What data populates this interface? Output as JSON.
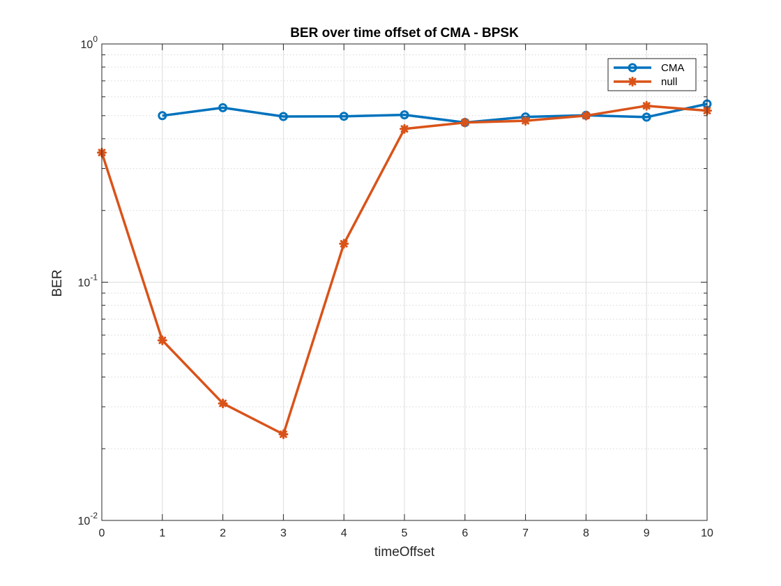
{
  "chart_data": {
    "type": "line",
    "title": "BER over time offset of CMA - BPSK",
    "xlabel": "timeOffset",
    "ylabel": "BER",
    "xlim": [
      0,
      10
    ],
    "ylim": [
      0.01,
      1
    ],
    "yscale": "log",
    "grid": true,
    "legend_location": "top-right",
    "x_ticks": [
      "0",
      "1",
      "2",
      "3",
      "4",
      "5",
      "6",
      "7",
      "8",
      "9",
      "10"
    ],
    "y_ticks": [
      {
        "base": "10",
        "exp": "0"
      },
      {
        "base": "10",
        "exp": "-1"
      },
      {
        "base": "10",
        "exp": "-2"
      }
    ],
    "series": [
      {
        "name": "CMA",
        "color": "#0072BD",
        "marker": "circle",
        "x": [
          1,
          2,
          3,
          4,
          5,
          6,
          7,
          8,
          9,
          10
        ],
        "values": [
          0.5,
          0.54,
          0.496,
          0.497,
          0.504,
          0.468,
          0.494,
          0.502,
          0.493,
          0.56
        ]
      },
      {
        "name": "null",
        "color": "#D95319",
        "marker": "star",
        "x": [
          0,
          1,
          2,
          3,
          4,
          5,
          6,
          7,
          8,
          9,
          10
        ],
        "values": [
          0.35,
          0.057,
          0.031,
          0.023,
          0.145,
          0.44,
          0.468,
          0.476,
          0.5,
          0.55,
          0.525
        ]
      }
    ]
  }
}
